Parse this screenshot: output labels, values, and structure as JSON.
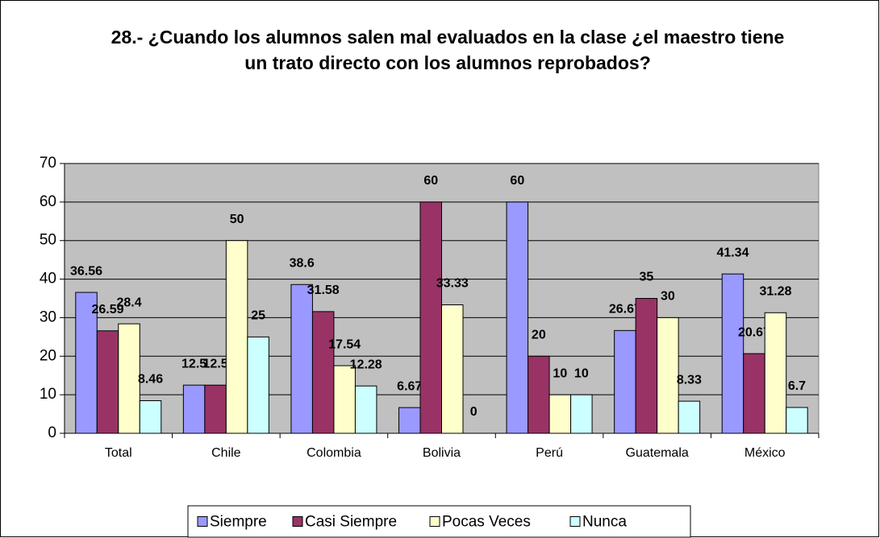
{
  "chart_data": {
    "type": "bar",
    "title": "28.- ¿Cuando los alumnos salen mal evaluados en la clase ¿el maestro tiene un trato directo con los alumnos reprobados?",
    "categories": [
      "Total",
      "Chile",
      "Colombia",
      "Bolivia",
      "Perú",
      "Guatemala",
      "México"
    ],
    "series": [
      {
        "name": "Siempre",
        "color": "#9999ff",
        "values": [
          36.56,
          12.5,
          38.6,
          6.67,
          60,
          26.67,
          41.34
        ]
      },
      {
        "name": "Casi Siempre",
        "color": "#993366",
        "values": [
          26.59,
          12.5,
          31.58,
          60,
          20,
          35,
          20.67
        ]
      },
      {
        "name": "Pocas Veces",
        "color": "#ffffcc",
        "values": [
          28.4,
          50,
          17.54,
          33.33,
          10,
          30,
          31.28
        ]
      },
      {
        "name": "Nunca",
        "color": "#ccffff",
        "values": [
          8.46,
          25,
          12.28,
          0,
          10,
          8.33,
          6.7
        ]
      }
    ],
    "ylim": [
      0,
      70
    ],
    "yticks": [
      0,
      10,
      20,
      30,
      40,
      50,
      60,
      70
    ],
    "grid": true,
    "legend": "bottom"
  }
}
